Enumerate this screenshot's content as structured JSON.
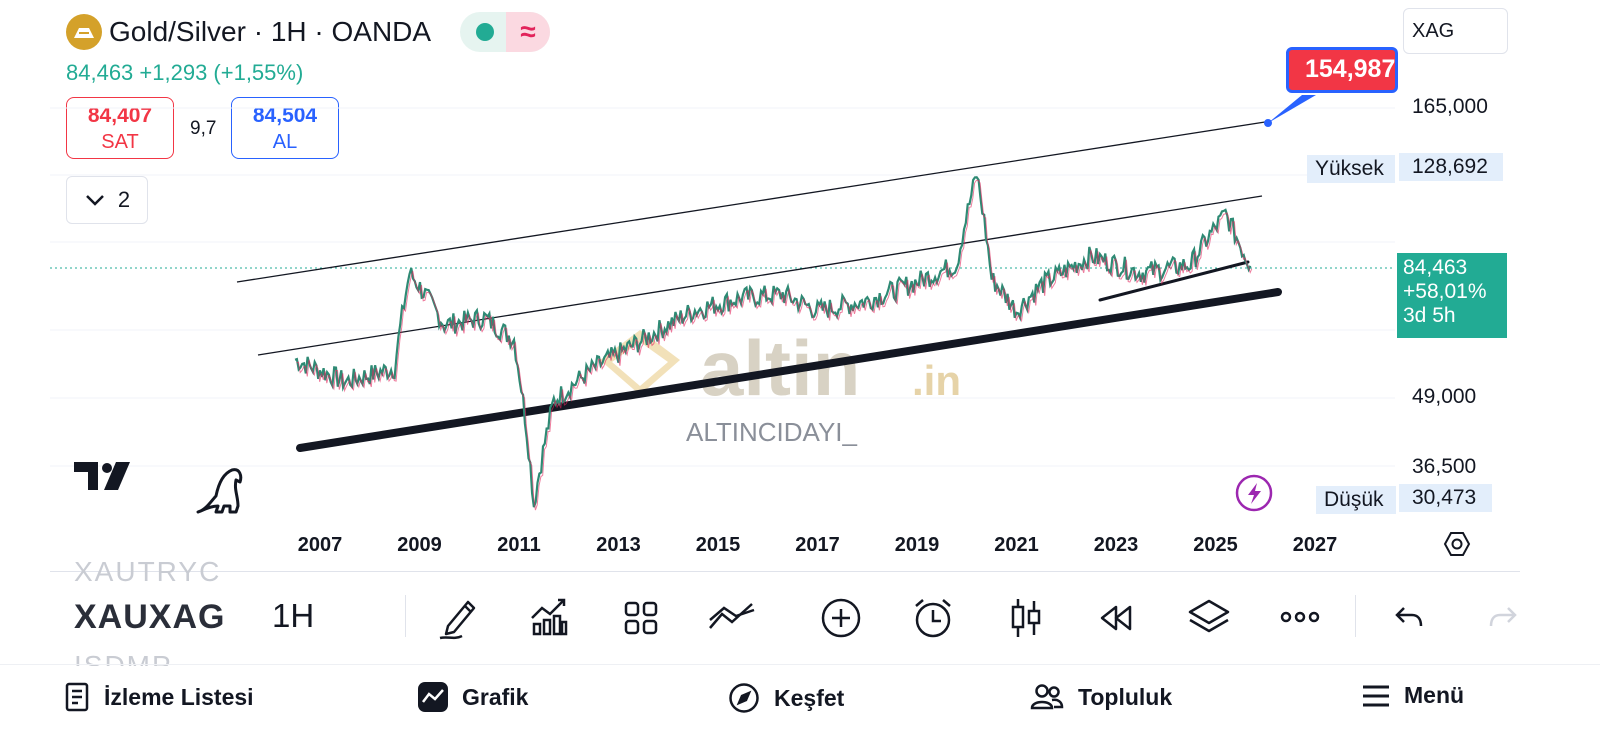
{
  "header": {
    "symbol_title": "Gold/Silver · 1H · OANDA",
    "price_change": "84,463  +1,293 (+1,55%)",
    "sell": {
      "price": "84,407",
      "label": "SAT"
    },
    "spread": "9,7",
    "buy": {
      "price": "84,504",
      "label": "AL"
    },
    "indicator_count": "2",
    "search_value": "XAG"
  },
  "price_scale": {
    "labels": [
      "165,000",
      "49,000",
      "36,500"
    ],
    "high": {
      "label": "Yüksek",
      "value": "128,692"
    },
    "low": {
      "label": "Düşük",
      "value": "30,473"
    },
    "current": {
      "price": "84,463",
      "change": "+58,01%",
      "countdown": "3d 5h"
    },
    "target_callout": "154,987"
  },
  "time_axis": {
    "years": [
      "2007",
      "2009",
      "2011",
      "2013",
      "2015",
      "2017",
      "2019",
      "2021",
      "2023",
      "2025",
      "2027"
    ]
  },
  "watermark": {
    "brand": "altin",
    "brand_suffix": ".in",
    "author": "ALTINCIDAYI_"
  },
  "toolbar": {
    "symbol_prev": "XAUTRYC",
    "symbol": "XAUXAG",
    "symbol_next": "ISDMP",
    "interval": "1H",
    "icons": [
      "pencil-icon",
      "indicators-icon",
      "layout-icon",
      "compare-icon",
      "add-icon",
      "alarm-icon",
      "candles-icon",
      "replay-icon",
      "layers-icon",
      "more-icon",
      "undo-icon",
      "redo-icon"
    ]
  },
  "bottom_nav": {
    "items": [
      {
        "label": "İzleme Listesi",
        "icon": "watchlist-icon"
      },
      {
        "label": "Grafik",
        "icon": "chart-icon"
      },
      {
        "label": "Keşfet",
        "icon": "compass-icon"
      },
      {
        "label": "Topluluk",
        "icon": "community-icon"
      },
      {
        "label": "Menü",
        "icon": "menu-icon"
      }
    ]
  },
  "colors": {
    "up": "#22ab94",
    "down": "#f23645",
    "accent": "#2962ff",
    "gold": "#d4a12a"
  },
  "chart_data": {
    "type": "line",
    "x_unit": "year",
    "x": [
      2006.5,
      2007.5,
      2008.5,
      2008.8,
      2009.5,
      2010.3,
      2010.9,
      2011.3,
      2011.7,
      2012.5,
      2013.5,
      2014.5,
      2015.5,
      2016.3,
      2017.0,
      2018.0,
      2019.0,
      2019.8,
      2020.2,
      2020.5,
      2021.0,
      2021.5,
      2022.5,
      2023.5,
      2024.5,
      2025.2,
      2025.5,
      2025.7
    ],
    "y": [
      57,
      52,
      55,
      82,
      66,
      68,
      62,
      31,
      48,
      55,
      62,
      70,
      74,
      75,
      70,
      73,
      79,
      85,
      124,
      80,
      70,
      78,
      88,
      82,
      85,
      105,
      92,
      84.463
    ],
    "ylim": [
      28,
      175
    ],
    "xlim": [
      2006,
      2028
    ]
  }
}
